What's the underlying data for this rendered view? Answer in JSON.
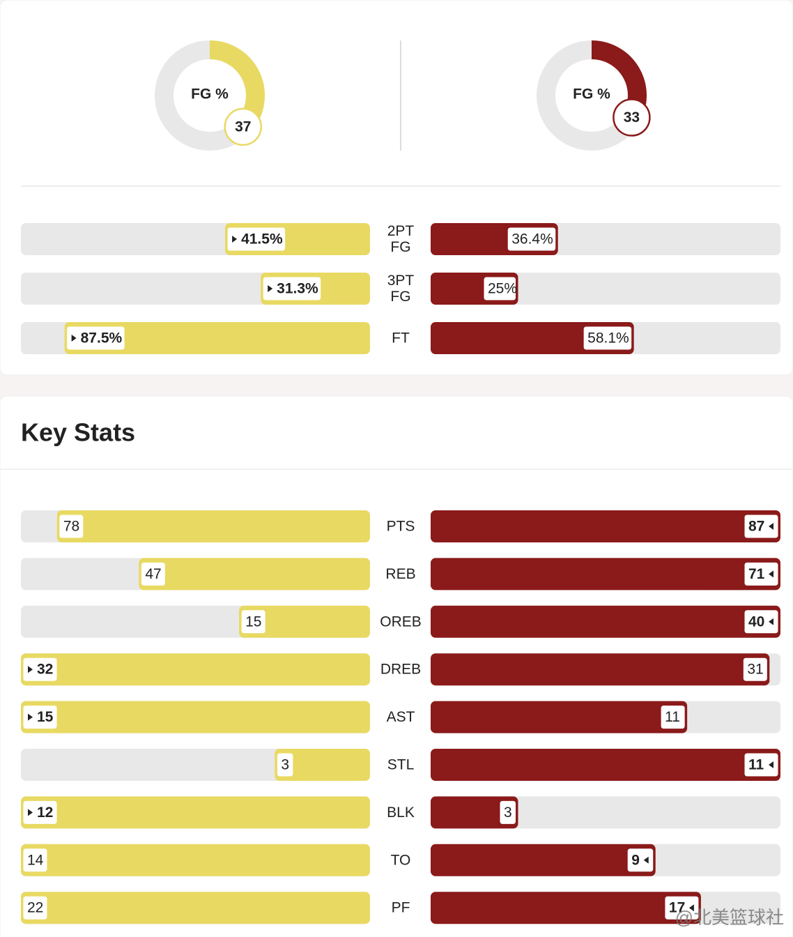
{
  "fg": {
    "lim": [
      0,
      100
    ],
    "left": {
      "label": "FG %",
      "value": 37
    },
    "right": {
      "label": "FG %",
      "value": 33
    }
  },
  "shooting": {
    "xlim": [
      0,
      100
    ],
    "rows": [
      {
        "label": [
          "2PT",
          "FG"
        ],
        "values": [
          41.5,
          36.4
        ],
        "value_labels": [
          "41.5%",
          "36.4%"
        ],
        "leader": "left"
      },
      {
        "label": [
          "3PT",
          "FG"
        ],
        "values": [
          31.3,
          25
        ],
        "value_labels": [
          "31.3%",
          "25%"
        ],
        "leader": "left"
      },
      {
        "label": [
          "FT"
        ],
        "values": [
          87.5,
          58.1
        ],
        "value_labels": [
          "87.5%",
          "58.1%"
        ],
        "leader": "left"
      }
    ]
  },
  "key_stats": {
    "title": "Key Stats",
    "rows": [
      {
        "label": "PTS",
        "values": [
          78,
          87
        ],
        "leader": "right"
      },
      {
        "label": "REB",
        "values": [
          47,
          71
        ],
        "leader": "right"
      },
      {
        "label": "OREB",
        "values": [
          15,
          40
        ],
        "leader": "right"
      },
      {
        "label": "DREB",
        "values": [
          32,
          31
        ],
        "leader": "left"
      },
      {
        "label": "AST",
        "values": [
          15,
          11
        ],
        "leader": "left"
      },
      {
        "label": "STL",
        "values": [
          3,
          11
        ],
        "leader": "right"
      },
      {
        "label": "BLK",
        "values": [
          12,
          3
        ],
        "leader": "left"
      },
      {
        "label": "TO",
        "values": [
          14,
          9
        ],
        "leader": "right"
      },
      {
        "label": "PF",
        "values": [
          22,
          17
        ],
        "leader": "right"
      }
    ]
  },
  "colors": {
    "left": "#e8d962",
    "right": "#8b1a1a",
    "track": "#e8e8e8"
  },
  "watermark": "@北美篮球社"
}
